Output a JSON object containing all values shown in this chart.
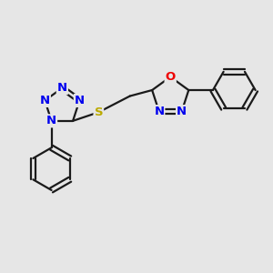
{
  "background_color": "#e6e6e6",
  "bond_color": "#1a1a1a",
  "N_color": "#0000ee",
  "O_color": "#ee0000",
  "S_color": "#bbaa00",
  "line_width": 1.6,
  "font_size": 9.5,
  "fig_width": 3.0,
  "fig_height": 3.0,
  "dpi": 100,
  "xlim": [
    -2.8,
    2.5
  ],
  "ylim": [
    -1.4,
    2.0
  ]
}
